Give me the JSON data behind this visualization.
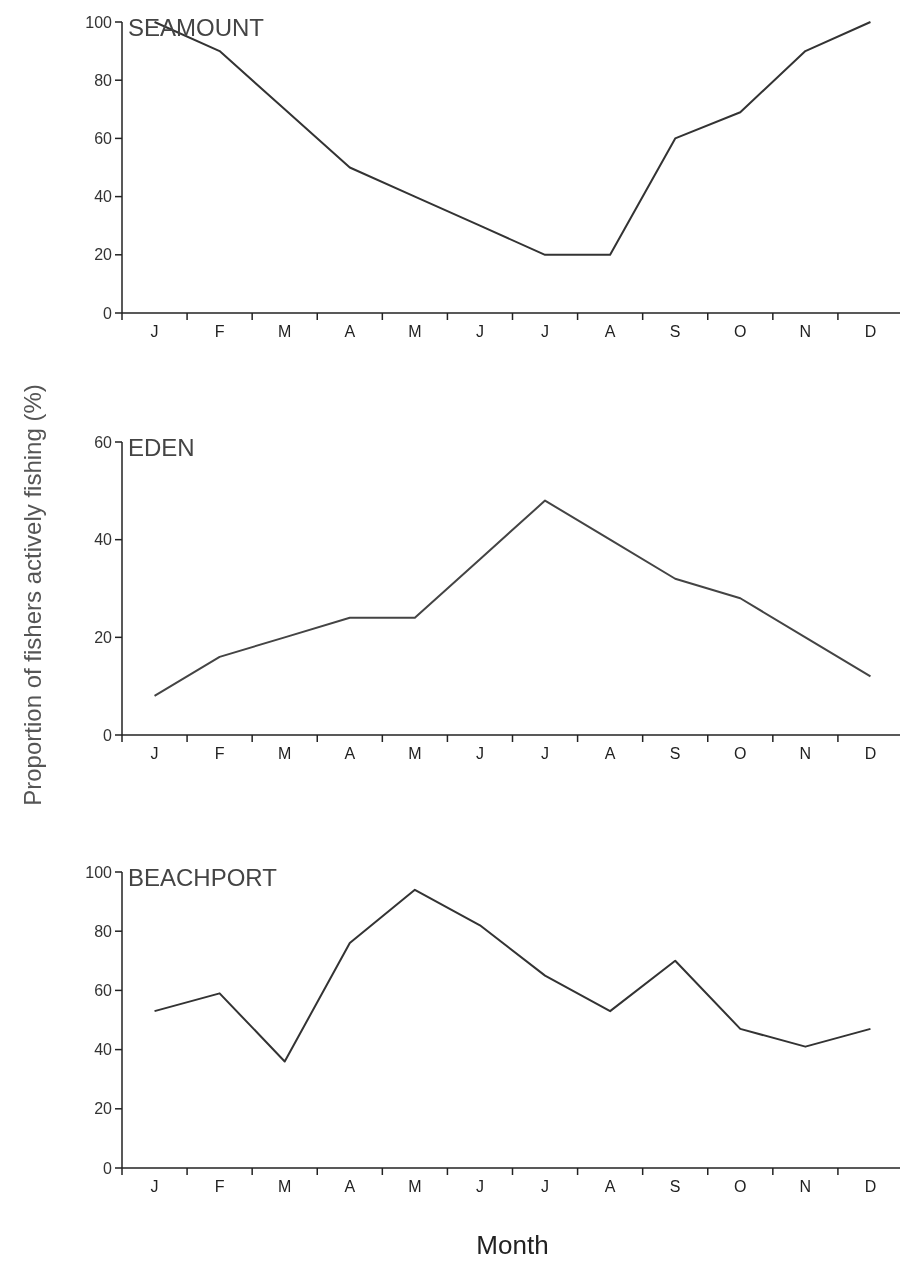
{
  "chart_data": [
    {
      "type": "line",
      "title": "SEAMOUNT",
      "categories": [
        "J",
        "F",
        "M",
        "A",
        "M",
        "J",
        "J",
        "A",
        "S",
        "O",
        "N",
        "D"
      ],
      "series": [
        {
          "color": "#333333",
          "values": [
            100,
            90,
            70,
            50,
            40,
            30,
            20,
            20,
            60,
            69,
            90,
            100
          ]
        }
      ],
      "ylim": [
        0,
        100
      ],
      "yticks": [
        0,
        20,
        40,
        60,
        80,
        100
      ]
    },
    {
      "type": "line",
      "title": "EDEN",
      "ylabel": "Proportion of fishers actively fishing (%)",
      "categories": [
        "J",
        "F",
        "M",
        "A",
        "M",
        "J",
        "J",
        "A",
        "S",
        "O",
        "N",
        "D"
      ],
      "series": [
        {
          "color": "#444444",
          "values": [
            8,
            16,
            20,
            24,
            24,
            36,
            48,
            40,
            32,
            28,
            20,
            12
          ]
        }
      ],
      "ylim": [
        0,
        60
      ],
      "yticks": [
        0,
        20,
        40,
        60
      ]
    },
    {
      "type": "line",
      "title": "BEACHPORT",
      "xlabel": "Month",
      "categories": [
        "J",
        "F",
        "M",
        "A",
        "M",
        "J",
        "J",
        "A",
        "S",
        "O",
        "N",
        "D"
      ],
      "series": [
        {
          "color": "#333333",
          "values": [
            53,
            59,
            36,
            76,
            94,
            82,
            65,
            53,
            70,
            47,
            41,
            47
          ]
        }
      ],
      "ylim": [
        0,
        100
      ],
      "yticks": [
        0,
        20,
        40,
        60,
        80,
        100
      ]
    }
  ]
}
